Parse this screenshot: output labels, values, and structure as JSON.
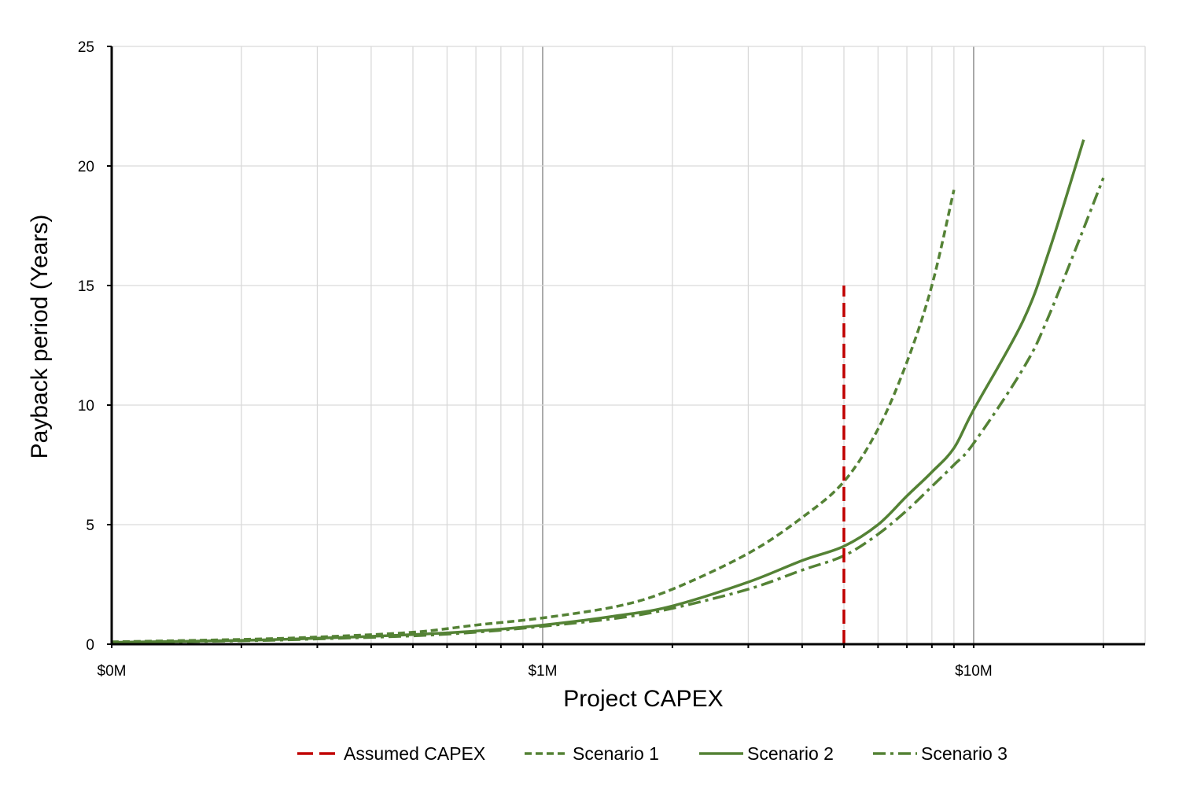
{
  "chart_data": {
    "type": "line",
    "xlabel": "Project CAPEX",
    "ylabel": "Payback period (Years)",
    "x_scale": "log",
    "xlim": [
      100000,
      25000000
    ],
    "ylim": [
      0,
      25
    ],
    "x_ticks": [
      {
        "value": 100000,
        "label": "$0M"
      },
      {
        "value": 1000000,
        "label": "$1M"
      },
      {
        "value": 10000000,
        "label": "$10M"
      }
    ],
    "y_ticks": [
      0,
      5,
      10,
      15,
      20,
      25
    ],
    "grid": true,
    "legend_position": "bottom",
    "legend": [
      {
        "key": "assumed",
        "label": "Assumed CAPEX"
      },
      {
        "key": "s1",
        "label": "Scenario 1"
      },
      {
        "key": "s2",
        "label": "Scenario 2"
      },
      {
        "key": "s3",
        "label": "Scenario 3"
      }
    ],
    "colors": {
      "assumed": "#C00000",
      "series": "#548235"
    },
    "assumed_capex": {
      "x": 5000000,
      "y_range": [
        0,
        15
      ]
    },
    "series": [
      {
        "key": "s1",
        "name": "Scenario 1",
        "dash": "dash",
        "points": [
          [
            100000,
            0.1
          ],
          [
            200000,
            0.2
          ],
          [
            300000,
            0.3
          ],
          [
            500000,
            0.5
          ],
          [
            700000,
            0.8
          ],
          [
            1000000,
            1.1
          ],
          [
            1500000,
            1.6
          ],
          [
            2000000,
            2.3
          ],
          [
            3000000,
            3.8
          ],
          [
            4000000,
            5.3
          ],
          [
            5000000,
            6.8
          ],
          [
            6000000,
            9.0
          ],
          [
            7000000,
            11.8
          ],
          [
            8000000,
            15.0
          ],
          [
            9000000,
            19.0
          ]
        ]
      },
      {
        "key": "s2",
        "name": "Scenario 2",
        "dash": "solid",
        "points": [
          [
            100000,
            0.08
          ],
          [
            200000,
            0.16
          ],
          [
            300000,
            0.25
          ],
          [
            500000,
            0.4
          ],
          [
            700000,
            0.55
          ],
          [
            1000000,
            0.8
          ],
          [
            1500000,
            1.2
          ],
          [
            2000000,
            1.6
          ],
          [
            3000000,
            2.6
          ],
          [
            4000000,
            3.5
          ],
          [
            5000000,
            4.1
          ],
          [
            6000000,
            5.0
          ],
          [
            7000000,
            6.2
          ],
          [
            8000000,
            7.2
          ],
          [
            9000000,
            8.2
          ],
          [
            10000000,
            9.8
          ],
          [
            13000000,
            13.5
          ],
          [
            15000000,
            16.5
          ],
          [
            18000000,
            21.1
          ]
        ]
      },
      {
        "key": "s3",
        "name": "Scenario 3",
        "dash": "dashdot",
        "points": [
          [
            100000,
            0.07
          ],
          [
            200000,
            0.14
          ],
          [
            300000,
            0.22
          ],
          [
            500000,
            0.35
          ],
          [
            700000,
            0.5
          ],
          [
            1000000,
            0.75
          ],
          [
            1500000,
            1.1
          ],
          [
            2000000,
            1.5
          ],
          [
            3000000,
            2.3
          ],
          [
            4000000,
            3.1
          ],
          [
            5000000,
            3.7
          ],
          [
            6000000,
            4.6
          ],
          [
            7000000,
            5.6
          ],
          [
            8000000,
            6.6
          ],
          [
            9000000,
            7.5
          ],
          [
            10000000,
            8.4
          ],
          [
            13000000,
            11.5
          ],
          [
            15000000,
            13.8
          ],
          [
            20000000,
            19.5
          ]
        ]
      }
    ]
  }
}
